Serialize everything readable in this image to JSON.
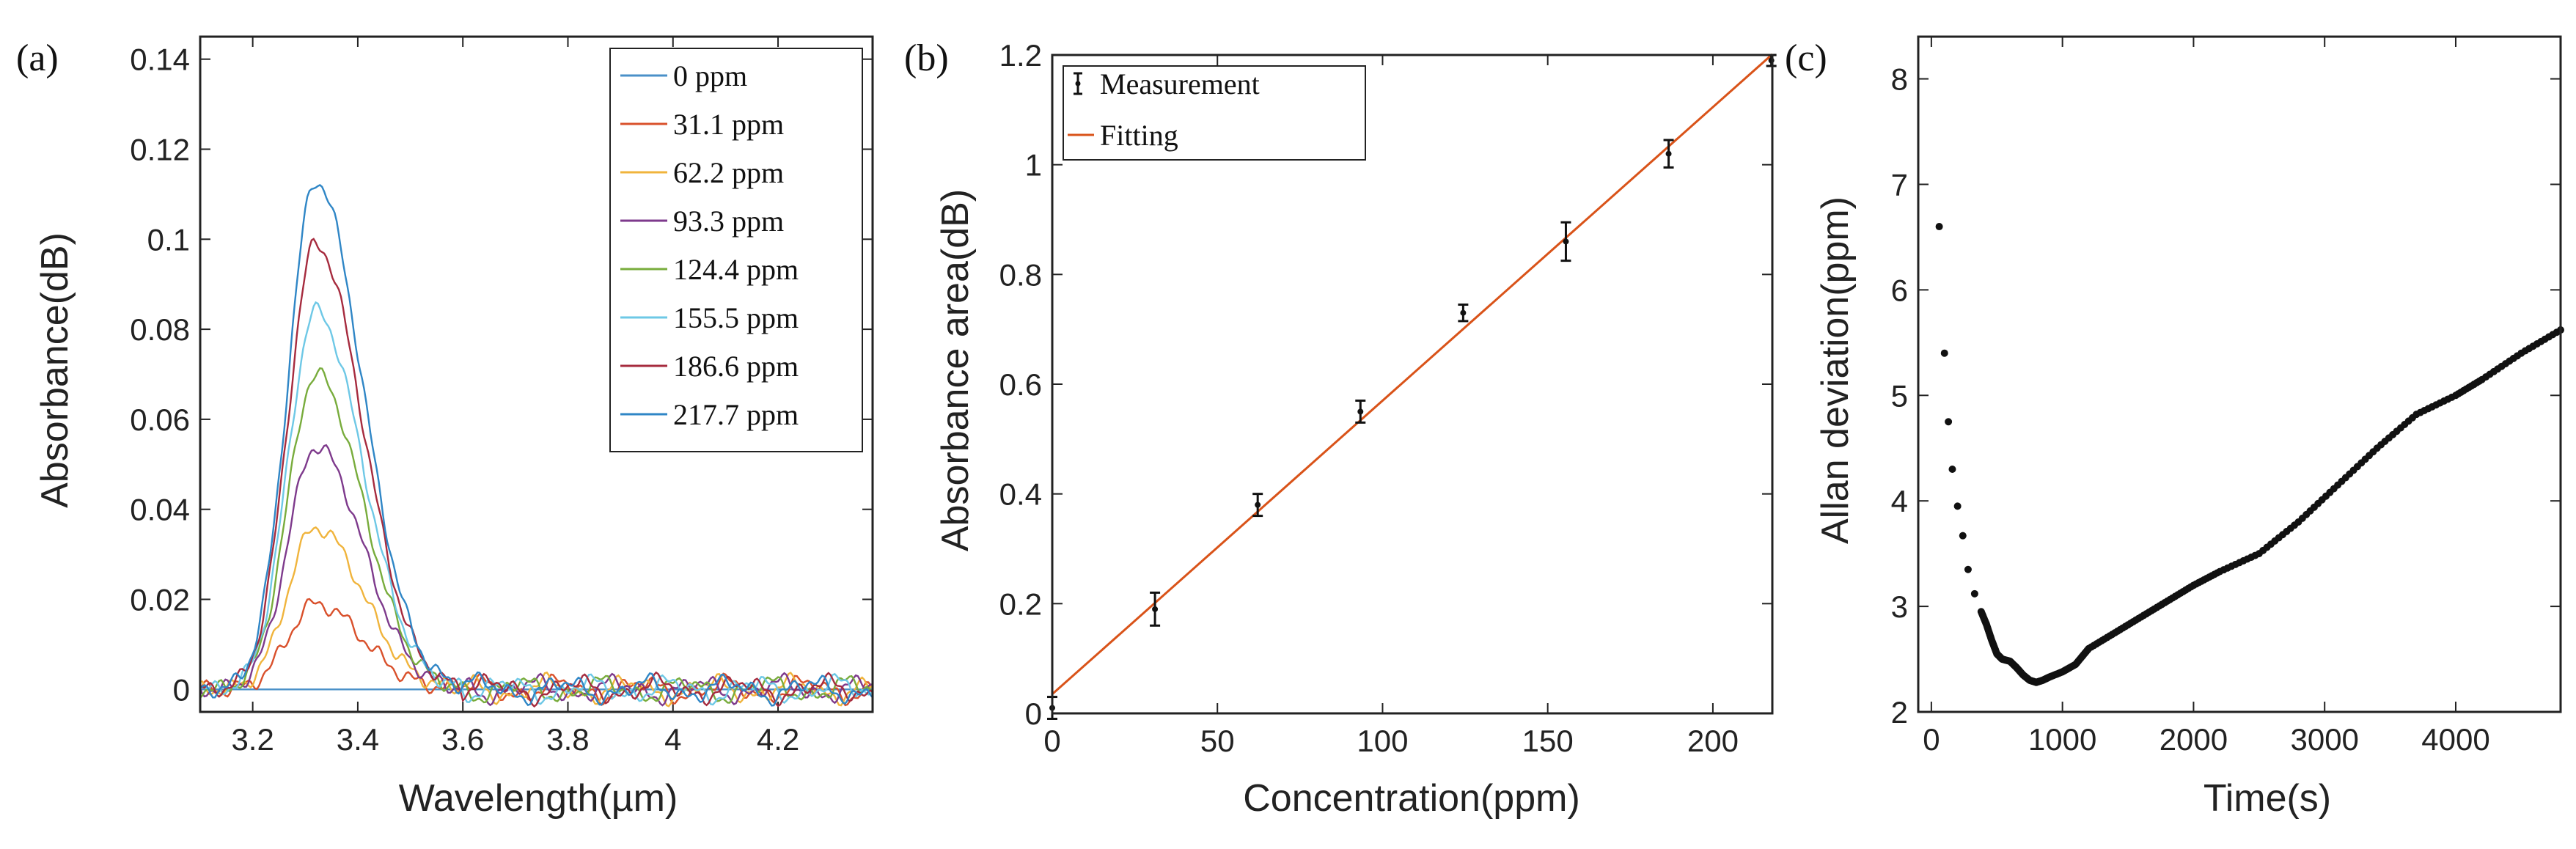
{
  "chart_data": [
    {
      "panel_label": "(a)",
      "type": "line",
      "xlabel": "Wavelength(µm)",
      "ylabel": "Absorbance(dB)",
      "xlim": [
        3.1,
        4.38
      ],
      "ylim": [
        -0.005,
        0.145
      ],
      "xticks": [
        "3.2",
        "3.4",
        "3.6",
        "3.8",
        "4",
        "4.2"
      ],
      "yticks": [
        "0",
        "0.02",
        "0.04",
        "0.06",
        "0.08",
        "0.1",
        "0.12",
        "0.14"
      ],
      "peak_wavelength": 3.32,
      "series": [
        {
          "name": "0 ppm",
          "color": "#4a90c8",
          "peak": 0
        },
        {
          "name": "31.1 ppm",
          "color": "#d9502b",
          "peak": 0.019
        },
        {
          "name": "62.2 ppm",
          "color": "#f0b43c",
          "peak": 0.036
        },
        {
          "name": "93.3 ppm",
          "color": "#7e3a8c",
          "peak": 0.054
        },
        {
          "name": "124.4 ppm",
          "color": "#78ac3c",
          "peak": 0.07
        },
        {
          "name": "155.5 ppm",
          "color": "#6ec8e6",
          "peak": 0.084
        },
        {
          "name": "186.6 ppm",
          "color": "#a62b3e",
          "peak": 0.099
        },
        {
          "name": "217.7 ppm",
          "color": "#2f86c6",
          "peak": 0.113
        }
      ]
    },
    {
      "panel_label": "(b)",
      "type": "scatter",
      "xlabel": "Concentration(ppm)",
      "ylabel": "Absorbance area(dB)",
      "xlim": [
        0,
        218
      ],
      "ylim": [
        0,
        1.2
      ],
      "xticks": [
        "0",
        "50",
        "100",
        "150",
        "200"
      ],
      "yticks": [
        "0",
        "0.2",
        "0.4",
        "0.6",
        "0.8",
        "1",
        "1.2"
      ],
      "legend": [
        "Measurement",
        "Fitting"
      ],
      "fit_color": "#d95319",
      "fit": {
        "intercept": 0.035,
        "slope": 0.00535
      },
      "points": [
        {
          "x": 0,
          "y": 0.01,
          "err": 0.02
        },
        {
          "x": 31.1,
          "y": 0.19,
          "err": 0.03
        },
        {
          "x": 62.2,
          "y": 0.38,
          "err": 0.02
        },
        {
          "x": 93.3,
          "y": 0.55,
          "err": 0.02
        },
        {
          "x": 124.4,
          "y": 0.73,
          "err": 0.015
        },
        {
          "x": 155.5,
          "y": 0.86,
          "err": 0.035
        },
        {
          "x": 186.6,
          "y": 1.02,
          "err": 0.025
        },
        {
          "x": 217.7,
          "y": 1.19,
          "err": 0.01
        }
      ]
    },
    {
      "panel_label": "(c)",
      "type": "scatter",
      "xlabel": "Time(s)",
      "ylabel": "Allan deviation(ppm)",
      "xlim": [
        -100,
        4800
      ],
      "ylim": [
        2,
        8.4
      ],
      "xticks": [
        "0",
        "1000",
        "2000",
        "3000",
        "4000"
      ],
      "yticks": [
        "2",
        "3",
        "4",
        "5",
        "6",
        "7",
        "8"
      ],
      "points": [
        [
          60,
          6.6
        ],
        [
          100,
          5.4
        ],
        [
          130,
          4.75
        ],
        [
          160,
          4.3
        ],
        [
          200,
          3.95
        ],
        [
          240,
          3.67
        ],
        [
          280,
          3.35
        ],
        [
          330,
          3.12
        ],
        [
          380,
          2.95
        ],
        [
          420,
          2.83
        ],
        [
          460,
          2.68
        ],
        [
          500,
          2.55
        ],
        [
          540,
          2.5
        ],
        [
          600,
          2.48
        ],
        [
          650,
          2.42
        ],
        [
          700,
          2.35
        ],
        [
          750,
          2.3
        ],
        [
          800,
          2.28
        ],
        [
          850,
          2.3
        ],
        [
          900,
          2.33
        ],
        [
          1000,
          2.38
        ],
        [
          1100,
          2.45
        ],
        [
          1200,
          2.6
        ],
        [
          1400,
          2.75
        ],
        [
          1600,
          2.9
        ],
        [
          1800,
          3.05
        ],
        [
          2000,
          3.2
        ],
        [
          2200,
          3.33
        ],
        [
          2500,
          3.5
        ],
        [
          2800,
          3.8
        ],
        [
          3100,
          4.15
        ],
        [
          3400,
          4.5
        ],
        [
          3700,
          4.82
        ],
        [
          4000,
          5.0
        ],
        [
          4200,
          5.15
        ],
        [
          4500,
          5.4
        ],
        [
          4800,
          5.62
        ]
      ]
    }
  ]
}
